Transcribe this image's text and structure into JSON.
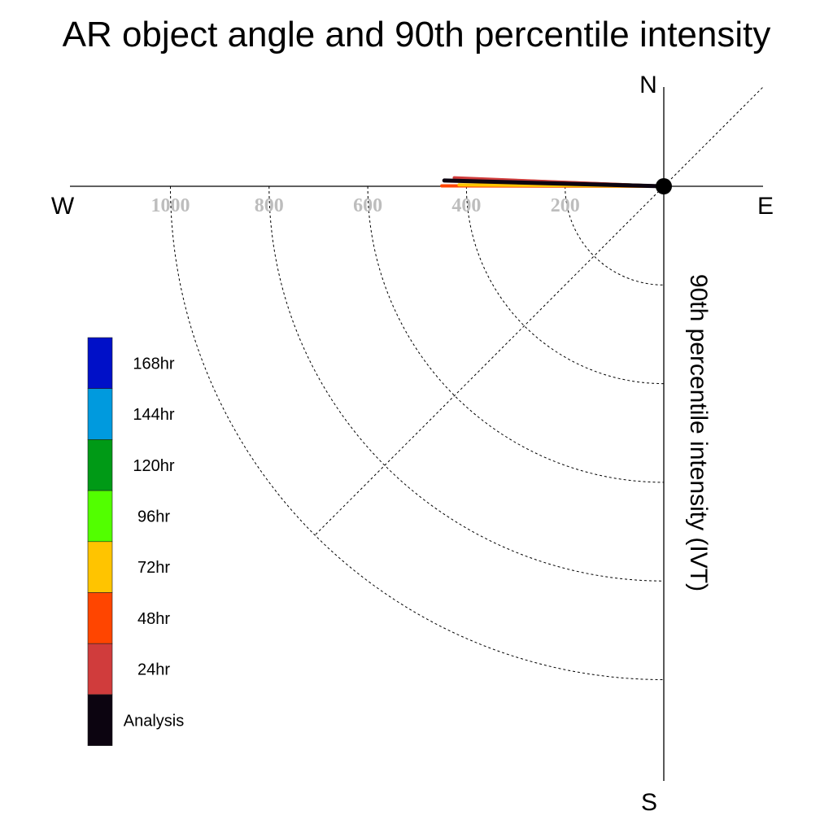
{
  "chart_data": {
    "type": "polar-quadrant",
    "title": "AR object angle and 90th percentile intensity",
    "ylabel": "90th percentile intensity (IVT)",
    "compass": {
      "north": "N",
      "south": "S",
      "east": "E",
      "west": "W"
    },
    "radial_ticks": [
      {
        "value": 200,
        "label": "200"
      },
      {
        "value": 400,
        "label": "400"
      },
      {
        "value": 600,
        "label": "600"
      },
      {
        "value": 800,
        "label": "800"
      },
      {
        "value": 1000,
        "label": "1000"
      }
    ],
    "rmax": 1200,
    "grid": true,
    "legend_position": "bottom-left",
    "series": [
      {
        "name": "168hr",
        "color": "#0010c8"
      },
      {
        "name": "144hr",
        "color": "#009ade"
      },
      {
        "name": "120hr",
        "color": "#009a16",
        "angle_deg": 177.8,
        "intensity": 420
      },
      {
        "name": "96hr",
        "color": "#52ff00"
      },
      {
        "name": "72hr",
        "color": "#ffc400",
        "angle_deg": 179.6,
        "intensity": 415
      },
      {
        "name": "48hr",
        "color": "#ff4500",
        "angle_deg": 179.9,
        "intensity": 450
      },
      {
        "name": "24hr",
        "color": "#d03c3c",
        "angle_deg": 177.7,
        "intensity": 425
      },
      {
        "name": "Analysis",
        "color": "#0c0410",
        "angle_deg": 178.5,
        "intensity": 445
      }
    ]
  }
}
